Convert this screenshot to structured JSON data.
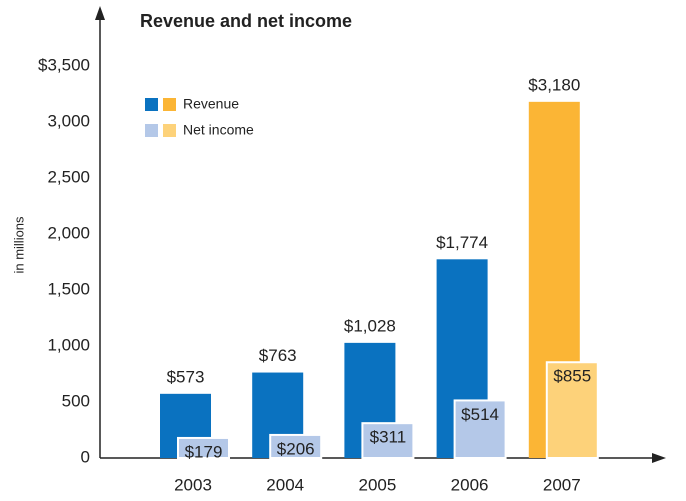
{
  "chart_data": {
    "type": "bar",
    "title": "Revenue and net income",
    "y_label": "in millions",
    "categories": [
      "2003",
      "2004",
      "2005",
      "2006",
      "2007"
    ],
    "series": [
      {
        "name": "Revenue",
        "colors": [
          "#0a72c0",
          "#0a72c0",
          "#0a72c0",
          "#0a72c0",
          "#fbb535"
        ],
        "values": [
          573,
          763,
          1028,
          1774,
          3180
        ],
        "value_labels": [
          "$573",
          "$763",
          "$1,028",
          "$1,774",
          "$3,180"
        ]
      },
      {
        "name": "Net income",
        "colors": [
          "#b4c8e8",
          "#b4c8e8",
          "#b4c8e8",
          "#b4c8e8",
          "#fdd27a"
        ],
        "values": [
          179,
          206,
          311,
          514,
          855
        ],
        "value_labels": [
          "$179",
          "$206",
          "$311",
          "$514",
          "$855"
        ]
      }
    ],
    "ylim": [
      0,
      3500
    ],
    "yticks": [
      0,
      {
        "value": 500,
        "label": "500"
      },
      {
        "value": 1000,
        "label": "1,000"
      },
      {
        "value": 1500,
        "label": "1,500"
      },
      {
        "value": 2000,
        "label": "2,000"
      },
      {
        "value": 2500,
        "label": "2,500"
      },
      {
        "value": 3000,
        "label": "3,000"
      },
      {
        "value": 3500,
        "label": "$3,500"
      }
    ]
  }
}
